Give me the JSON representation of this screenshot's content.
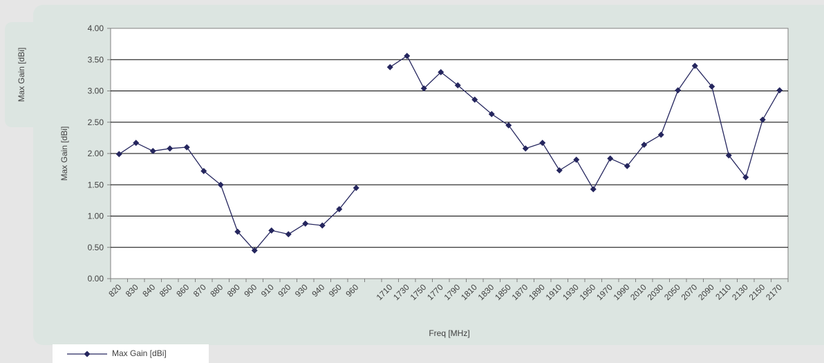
{
  "side_tab": {
    "label": "Max Gain [dBi]"
  },
  "legend": {
    "label": "Max Gain [dBi]"
  },
  "colors": {
    "series": "#25265e",
    "panel": "#dce5e1",
    "background": "#e6e6e6"
  },
  "chart_data": {
    "type": "line",
    "xlabel": "Freq [MHz]",
    "ylabel": "Max Gain [dBi]",
    "ylim": [
      0,
      4
    ],
    "yticks": [
      "0.00",
      "0.50",
      "1.00",
      "1.50",
      "2.00",
      "2.50",
      "3.00",
      "3.50",
      "4.00"
    ],
    "grid": "horizontal",
    "legend_position": "bottom-left",
    "categories": [
      "820",
      "830",
      "840",
      "850",
      "860",
      "870",
      "880",
      "890",
      "900",
      "910",
      "920",
      "930",
      "940",
      "950",
      "960",
      "",
      "1710",
      "1730",
      "1750",
      "1770",
      "1790",
      "1810",
      "1830",
      "1850",
      "1870",
      "1890",
      "1910",
      "1930",
      "1950",
      "1970",
      "1990",
      "2010",
      "2030",
      "2050",
      "2070",
      "2090",
      "2110",
      "2130",
      "2150",
      "2170"
    ],
    "series": [
      {
        "name": "Max Gain [dBi]",
        "marker": "diamond",
        "values": [
          1.99,
          2.17,
          2.04,
          2.08,
          2.1,
          1.72,
          1.5,
          0.75,
          0.45,
          0.77,
          0.71,
          0.88,
          0.85,
          1.11,
          1.45,
          null,
          3.38,
          3.56,
          3.04,
          3.3,
          3.09,
          2.86,
          2.63,
          2.45,
          2.08,
          2.17,
          1.73,
          1.9,
          1.43,
          1.92,
          1.8,
          2.14,
          2.3,
          3.01,
          3.4,
          3.07,
          1.97,
          1.62,
          2.54,
          3.01
        ]
      }
    ]
  }
}
